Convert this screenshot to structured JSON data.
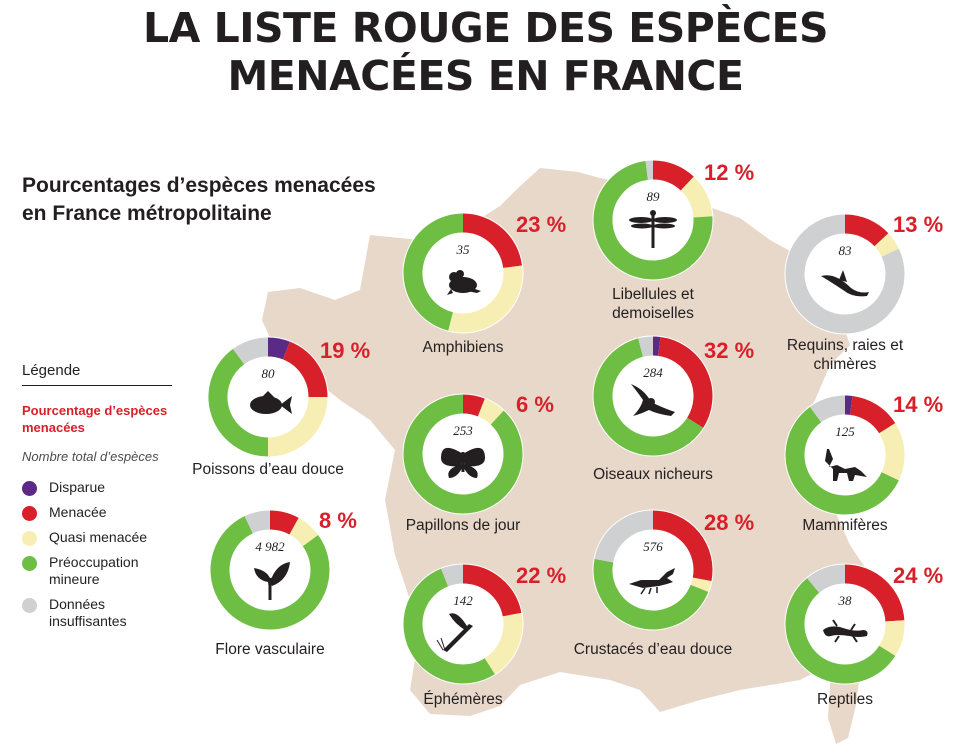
{
  "title_line1": "LA LISTE ROUGE DES ESPÈCES",
  "title_line2": "MENACÉES EN FRANCE",
  "subtitle_line1": "Pourcentages d’espèces menacées",
  "subtitle_line2": "en France métropolitaine",
  "legend": {
    "title": "Légende",
    "percent_label": "Pourcentage d’espèces menacées",
    "total_label": "Nombre total d’espèces",
    "items": [
      {
        "label": "Disparue",
        "color": "#5b2a86"
      },
      {
        "label": "Menacée",
        "color": "#d7202a"
      },
      {
        "label": "Quasi menacée",
        "color": "#f6eeb3"
      },
      {
        "label": "Préoccupation\nmineure",
        "color": "#6fbe44"
      },
      {
        "label": "Données\ninsuffisantes",
        "color": "#cfd0d2"
      }
    ]
  },
  "colors": {
    "map": "#e7d8c9",
    "disparue": "#5b2a86",
    "menacee": "#d7202a",
    "quasi": "#f6eeb3",
    "preoccupation": "#6fbe44",
    "insuffisantes": "#cfd0d2"
  },
  "chart_data": {
    "type": "donut",
    "segment_order": [
      "disparue",
      "menacee",
      "quasi",
      "preoccupation",
      "insuffisantes"
    ],
    "groups": [
      {
        "name": "Amphibiens",
        "percent_label": "23 %",
        "total": "35",
        "icon": "frog-icon",
        "shares": {
          "disparue": 0,
          "menacee": 23,
          "quasi": 31,
          "preoccupation": 46,
          "insuffisantes": 0
        }
      },
      {
        "name": "Libellules et\ndemoiselles",
        "percent_label": "12 %",
        "total": "89",
        "icon": "dragonfly-icon",
        "shares": {
          "disparue": 0,
          "menacee": 12,
          "quasi": 12,
          "preoccupation": 74,
          "insuffisantes": 2
        }
      },
      {
        "name": "Requins, raies et\nchimères",
        "percent_label": "13 %",
        "total": "83",
        "icon": "shark-icon",
        "shares": {
          "disparue": 0,
          "menacee": 13,
          "quasi": 5,
          "preoccupation": 0,
          "insuffisantes": 82
        }
      },
      {
        "name": "Poissons d’eau douce",
        "percent_label": "19 %",
        "total": "80",
        "icon": "fish-icon",
        "shares": {
          "disparue": 6,
          "menacee": 19,
          "quasi": 25,
          "preoccupation": 40,
          "insuffisantes": 10
        }
      },
      {
        "name": "Oiseaux nicheurs",
        "percent_label": "32 %",
        "total": "284",
        "icon": "bird-icon",
        "shares": {
          "disparue": 2,
          "menacee": 32,
          "quasi": 0,
          "preoccupation": 62,
          "insuffisantes": 4
        }
      },
      {
        "name": "Papillons de jour",
        "percent_label": "6 %",
        "total": "253",
        "icon": "butterfly-icon",
        "shares": {
          "disparue": 0,
          "menacee": 6,
          "quasi": 6,
          "preoccupation": 88,
          "insuffisantes": 0
        }
      },
      {
        "name": "Mammifères",
        "percent_label": "14 %",
        "total": "125",
        "icon": "fox-icon",
        "shares": {
          "disparue": 2,
          "menacee": 14,
          "quasi": 16,
          "preoccupation": 58,
          "insuffisantes": 10
        }
      },
      {
        "name": "Flore vasculaire",
        "percent_label": "8 %",
        "total": "4 982",
        "icon": "plant-icon",
        "shares": {
          "disparue": 0,
          "menacee": 8,
          "quasi": 7,
          "preoccupation": 78,
          "insuffisantes": 7
        }
      },
      {
        "name": "Crustacés d’eau douce",
        "percent_label": "28 %",
        "total": "576",
        "icon": "crayfish-icon",
        "shares": {
          "disparue": 0,
          "menacee": 28,
          "quasi": 3,
          "preoccupation": 47,
          "insuffisantes": 22
        }
      },
      {
        "name": "Éphémères",
        "percent_label": "22 %",
        "total": "142",
        "icon": "mayfly-icon",
        "shares": {
          "disparue": 0,
          "menacee": 22,
          "quasi": 19,
          "preoccupation": 53,
          "insuffisantes": 6
        }
      },
      {
        "name": "Reptiles",
        "percent_label": "24 %",
        "total": "38",
        "icon": "lizard-icon",
        "shares": {
          "disparue": 0,
          "menacee": 24,
          "quasi": 10,
          "preoccupation": 55,
          "insuffisantes": 11
        }
      }
    ]
  }
}
